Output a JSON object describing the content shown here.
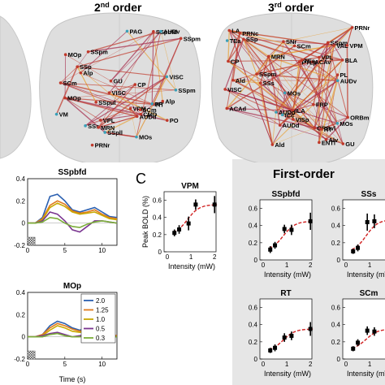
{
  "top_panels": {
    "second_order": {
      "title_sup": "nd",
      "title_rest": " order",
      "title_num": "2"
    },
    "third_order": {
      "title_sup": "rd",
      "title_rest": " order",
      "title_num": "3"
    },
    "second_labels": [
      "MOs",
      "MOp",
      "SSp",
      "SSpul",
      "SSpm",
      "GU",
      "SSs",
      "SSpbfd",
      "VISC",
      "AUDd",
      "AUDv",
      "SSpll",
      "RT",
      "VPL",
      "VPM",
      "PO",
      "CP",
      "SSpm",
      "Alp",
      "VISC",
      "CMD",
      "VM",
      "MRN",
      "SCm",
      "PAG",
      "PRNr",
      "SCm",
      "MOp",
      "SSpm",
      "PF",
      "Alp"
    ],
    "third_labels": [
      "FRP",
      "ORBvl",
      "ORBm",
      "MOs",
      "PL",
      "Ald",
      "Alv",
      "ILA",
      "ACAd",
      "ACAv",
      "GU",
      "SSp",
      "SSpm",
      "SSs",
      "VISC",
      "AUDd",
      "AUDv",
      "VAL",
      "VPL",
      "VPM",
      "BLA",
      "LA",
      "RT",
      "SNr",
      "PTLp",
      "VISp",
      "ENTl",
      "TEa",
      "SCm",
      "PRNr",
      "MRN",
      "CP",
      "MOs",
      "Ald",
      "SSpm",
      "AUDd",
      "TEa",
      "ICc",
      "PRNc"
    ]
  },
  "panel_c_label": "C",
  "first_order_header": "First-order",
  "timecourses": {
    "ssp_title": "SSpbfd",
    "mop_title": "MOp",
    "xlabel": "Time (s)",
    "x_ticks": [
      "0",
      "5",
      "10"
    ],
    "y_ticks_top": [
      "0.4",
      "0.2",
      "0",
      "-0.2"
    ],
    "y_ticks_bottom": [
      "0.4",
      "0.2",
      "0",
      "-0.2"
    ],
    "legend": [
      "2.0",
      "1.25",
      "1.0",
      "0.5",
      "0.3"
    ],
    "colors": [
      "#2a5fb0",
      "#e07a1e",
      "#c8a800",
      "#7a3590",
      "#7cae3a"
    ]
  },
  "dose_panels": {
    "xlabel": "Intensity (mW)",
    "ylabel": "Peak BOLD (%)",
    "y_ticks": [
      "0.6",
      "0.4",
      "0.2",
      "0"
    ],
    "x_ticks": [
      "0",
      "1",
      "2"
    ],
    "titles": [
      "VPM",
      "SSpbfd",
      "SSs",
      "RT",
      "SCm"
    ]
  },
  "chart_data": [
    {
      "type": "line",
      "title": "SSpbfd",
      "xlabel": "Time (s)",
      "xlim": [
        0,
        12
      ],
      "ylim": [
        -0.2,
        0.4
      ],
      "series": [
        {
          "name": "2.0",
          "x": [
            0,
            1,
            2,
            3,
            4,
            5,
            6,
            7,
            8,
            9,
            10,
            11,
            12
          ],
          "values": [
            0,
            0,
            0.05,
            0.24,
            0.26,
            0.2,
            0.12,
            0.1,
            0.12,
            0.14,
            0.1,
            0.06,
            0.05
          ]
        },
        {
          "name": "1.25",
          "x": [
            0,
            1,
            2,
            3,
            4,
            5,
            6,
            7,
            8,
            9,
            10,
            11,
            12
          ],
          "values": [
            0,
            0,
            0.04,
            0.16,
            0.2,
            0.17,
            0.11,
            0.09,
            0.1,
            0.12,
            0.08,
            0.05,
            0.04
          ]
        },
        {
          "name": "1.0",
          "x": [
            0,
            1,
            2,
            3,
            4,
            5,
            6,
            7,
            8,
            9,
            10,
            11,
            12
          ],
          "values": [
            0,
            0,
            0.03,
            0.14,
            0.18,
            0.15,
            0.1,
            0.08,
            0.09,
            0.1,
            0.07,
            0.04,
            0.03
          ]
        },
        {
          "name": "0.5",
          "x": [
            0,
            1,
            2,
            3,
            4,
            5,
            6,
            7,
            8,
            9,
            10,
            11,
            12
          ],
          "values": [
            0,
            0,
            0.02,
            0.1,
            0.08,
            0.02,
            -0.06,
            -0.08,
            -0.03,
            0.02,
            0.02,
            0.01,
            0
          ]
        },
        {
          "name": "0.3",
          "x": [
            0,
            1,
            2,
            3,
            4,
            5,
            6,
            7,
            8,
            9,
            10,
            11,
            12
          ],
          "values": [
            0,
            0,
            0.01,
            0.05,
            0.04,
            0.0,
            -0.03,
            -0.04,
            -0.01,
            0.01,
            0.02,
            0.01,
            0
          ]
        }
      ]
    },
    {
      "type": "line",
      "title": "MOp",
      "xlabel": "Time (s)",
      "xlim": [
        0,
        12
      ],
      "ylim": [
        -0.2,
        0.4
      ],
      "series": [
        {
          "name": "2.0",
          "x": [
            0,
            1,
            2,
            3,
            4,
            5,
            6,
            7,
            8,
            9,
            10,
            11,
            12
          ],
          "values": [
            0,
            0,
            0.02,
            0.1,
            0.14,
            0.12,
            0.08,
            0.06,
            0.08,
            0.07,
            0.04,
            0.02,
            0.01
          ]
        },
        {
          "name": "1.25",
          "x": [
            0,
            1,
            2,
            3,
            4,
            5,
            6,
            7,
            8,
            9,
            10,
            11,
            12
          ],
          "values": [
            0,
            0,
            0.02,
            0.08,
            0.12,
            0.1,
            0.07,
            0.05,
            0.07,
            0.06,
            0.03,
            0.02,
            0.01
          ]
        },
        {
          "name": "1.0",
          "x": [
            0,
            1,
            2,
            3,
            4,
            5,
            6,
            7,
            8,
            9,
            10,
            11,
            12
          ],
          "values": [
            0,
            0,
            0.01,
            0.06,
            0.1,
            0.08,
            0.05,
            0.04,
            0.05,
            0.05,
            0.03,
            0.01,
            0
          ]
        },
        {
          "name": "0.5",
          "x": [
            0,
            1,
            2,
            3,
            4,
            5,
            6,
            7,
            8,
            9,
            10,
            11,
            12
          ],
          "values": [
            0,
            0,
            0.01,
            0.03,
            0.04,
            0.02,
            0.0,
            0.01,
            0.02,
            0.01,
            0.0,
            0,
            0
          ]
        },
        {
          "name": "0.3",
          "x": [
            0,
            1,
            2,
            3,
            4,
            5,
            6,
            7,
            8,
            9,
            10,
            11,
            12
          ],
          "values": [
            0,
            0,
            0,
            0.02,
            0.03,
            0.01,
            0.0,
            0.0,
            0.01,
            0.0,
            0,
            0,
            0
          ]
        }
      ]
    },
    {
      "type": "scatter",
      "title": "VPM",
      "xlabel": "Intensity (mW)",
      "ylabel": "Peak BOLD (%)",
      "ylim": [
        0,
        0.7
      ],
      "x": [
        0.3,
        0.5,
        0.9,
        1.2,
        2.0
      ],
      "values": [
        0.22,
        0.26,
        0.33,
        0.55,
        0.55
      ],
      "errors": [
        0.04,
        0.05,
        0.08,
        0.06,
        0.1
      ]
    },
    {
      "type": "scatter",
      "title": "SSpbfd",
      "xlabel": "Intensity (mW)",
      "ylabel": "Peak BOLD (%)",
      "ylim": [
        0,
        0.7
      ],
      "x": [
        0.3,
        0.5,
        0.9,
        1.2,
        2.0
      ],
      "values": [
        0.12,
        0.17,
        0.36,
        0.35,
        0.45
      ],
      "errors": [
        0.04,
        0.04,
        0.05,
        0.06,
        0.1
      ]
    },
    {
      "type": "scatter",
      "title": "SSs",
      "xlabel": "Intensity (mW)",
      "ylabel": "Peak BOLD (%)",
      "ylim": [
        0,
        0.7
      ],
      "x": [
        0.3,
        0.5,
        0.9,
        1.2,
        2.0
      ],
      "values": [
        0.1,
        0.14,
        0.44,
        0.45,
        0.47
      ],
      "errors": [
        0.03,
        0.04,
        0.1,
        0.08,
        0.1
      ]
    },
    {
      "type": "scatter",
      "title": "RT",
      "xlabel": "Intensity (mW)",
      "ylabel": "Peak BOLD (%)",
      "ylim": [
        0,
        0.7
      ],
      "x": [
        0.3,
        0.5,
        0.9,
        1.2,
        2.0
      ],
      "values": [
        0.1,
        0.13,
        0.25,
        0.27,
        0.35
      ],
      "errors": [
        0.03,
        0.04,
        0.05,
        0.05,
        0.08
      ]
    },
    {
      "type": "scatter",
      "title": "SCm",
      "xlabel": "Intensity (mW)",
      "ylabel": "Peak BOLD (%)",
      "ylim": [
        0,
        0.7
      ],
      "x": [
        0.3,
        0.5,
        0.9,
        1.2,
        2.0
      ],
      "values": [
        0.12,
        0.19,
        0.33,
        0.32,
        0.35
      ],
      "errors": [
        0.03,
        0.04,
        0.05,
        0.05,
        0.08
      ]
    }
  ]
}
